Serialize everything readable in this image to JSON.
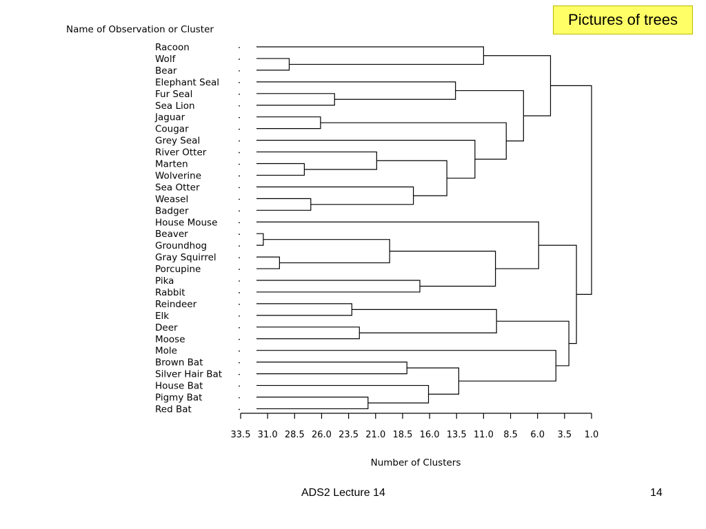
{
  "slide": {
    "title": "Pictures of trees",
    "footer": "ADS2 Lecture 14",
    "page_number": "14"
  },
  "chart_data": {
    "type": "dendrogram",
    "title": "",
    "ylabel": "Name of Observation or Cluster",
    "xlabel": "Number of Clusters",
    "xlim": [
      33.5,
      1.0
    ],
    "xticks": [
      "33.5",
      "31.0",
      "28.5",
      "26.0",
      "23.5",
      "21.0",
      "18.5",
      "16.0",
      "13.5",
      "11.0",
      "8.5",
      "6.0",
      "3.5",
      "1.0"
    ],
    "leaves": [
      "Racoon",
      "Wolf",
      "Bear",
      "Elephant Seal",
      "Fur Seal",
      "Sea Lion",
      "Jaguar",
      "Cougar",
      "Grey Seal",
      "River Otter",
      "Marten",
      "Wolverine",
      "Sea Otter",
      "Weasel",
      "Badger",
      "House Mouse",
      "Beaver",
      "Groundhog",
      "Gray Squirrel",
      "Porcupine",
      "Pika",
      "Rabbit",
      "Reindeer",
      "Elk",
      "Deer",
      "Moose",
      "Mole",
      "Brown Bat",
      "Silver Hair Bat",
      "House Bat",
      "Pigmy Bat",
      "Red Bat"
    ],
    "merges": [
      {
        "id": "a",
        "left": "Wolf",
        "right": "Bear",
        "level": 29.0
      },
      {
        "id": "b",
        "left": "Racoon",
        "right": "a",
        "level": 11.0
      },
      {
        "id": "c",
        "left": "Fur Seal",
        "right": "Sea Lion",
        "level": 24.8
      },
      {
        "id": "d",
        "left": "Elephant Seal",
        "right": "c",
        "level": 13.6
      },
      {
        "id": "e",
        "left": "Jaguar",
        "right": "Cougar",
        "level": 26.1
      },
      {
        "id": "f",
        "left": "Marten",
        "right": "Wolverine",
        "level": 27.6
      },
      {
        "id": "g",
        "left": "River Otter",
        "right": "f",
        "level": 20.9
      },
      {
        "id": "h",
        "left": "Weasel",
        "right": "Badger",
        "level": 27.0
      },
      {
        "id": "i",
        "left": "Sea Otter",
        "right": "h",
        "level": 17.5
      },
      {
        "id": "j",
        "left": "g",
        "right": "i",
        "level": 14.4
      },
      {
        "id": "k",
        "left": "Grey Seal",
        "right": "j",
        "level": 11.8
      },
      {
        "id": "l",
        "left": "e",
        "right": "k",
        "level": 8.9
      },
      {
        "id": "m",
        "left": "d",
        "right": "l",
        "level": 7.3
      },
      {
        "id": "n",
        "left": "b",
        "right": "m",
        "level": 4.8
      },
      {
        "id": "o",
        "left": "Beaver",
        "right": "Groundhog",
        "level": 31.4
      },
      {
        "id": "p",
        "left": "Gray Squirrel",
        "right": "Porcupine",
        "level": 29.9
      },
      {
        "id": "q",
        "left": "o",
        "right": "p",
        "level": 19.7
      },
      {
        "id": "r",
        "left": "Pika",
        "right": "Rabbit",
        "level": 16.9
      },
      {
        "id": "s",
        "left": "q",
        "right": "r",
        "level": 9.9
      },
      {
        "id": "t",
        "left": "House Mouse",
        "right": "s",
        "level": 5.9
      },
      {
        "id": "u",
        "left": "Reindeer",
        "right": "Elk",
        "level": 23.2
      },
      {
        "id": "v",
        "left": "Deer",
        "right": "Moose",
        "level": 22.5
      },
      {
        "id": "w",
        "left": "u",
        "right": "v",
        "level": 9.8
      },
      {
        "id": "x",
        "left": "Brown Bat",
        "right": "Silver Hair Bat",
        "level": 18.1
      },
      {
        "id": "y",
        "left": "Pigmy Bat",
        "right": "Red Bat",
        "level": 21.7
      },
      {
        "id": "z",
        "left": "House Bat",
        "right": "y",
        "level": 16.1
      },
      {
        "id": "aa",
        "left": "x",
        "right": "z",
        "level": 13.3
      },
      {
        "id": "ab",
        "left": "Mole",
        "right": "aa",
        "level": 4.3
      },
      {
        "id": "ac",
        "left": "w",
        "right": "ab",
        "level": 3.1
      },
      {
        "id": "ad",
        "left": "t",
        "right": "ac",
        "level": 2.4
      },
      {
        "id": "ae",
        "left": "n",
        "right": "ad",
        "level": 1.0
      }
    ]
  }
}
